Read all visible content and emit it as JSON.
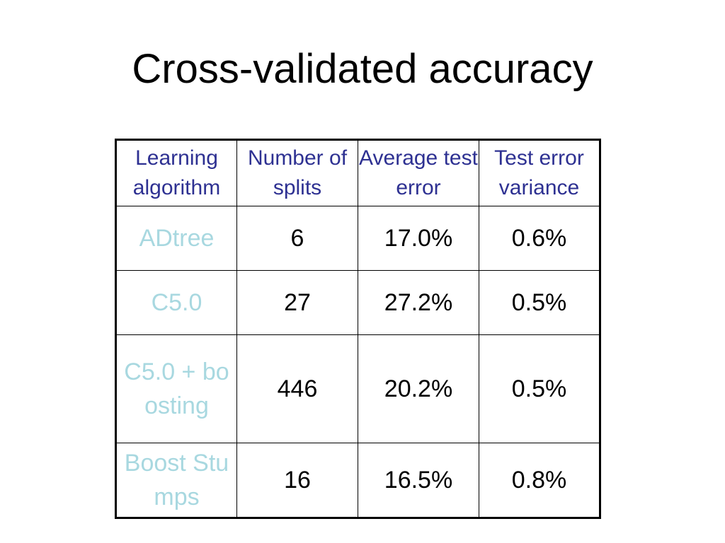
{
  "slide": {
    "title": "Cross-validated accuracy"
  },
  "table": {
    "headers": {
      "col0": "Learning algorithm",
      "col1": "Number of splits",
      "col2": "Average test error",
      "col3": "Test error variance"
    },
    "rows": [
      {
        "algorithm": "ADtree",
        "splits": "6",
        "avg_error": "17.0%",
        "variance": "0.6%"
      },
      {
        "algorithm": "C5.0",
        "splits": "27",
        "avg_error": "27.2%",
        "variance": "0.5%"
      },
      {
        "algorithm": "C5.0 + boosting",
        "splits": "446",
        "avg_error": "20.2%",
        "variance": "0.5%"
      },
      {
        "algorithm": "Boost Stumps",
        "splits": "16",
        "avg_error": "16.5%",
        "variance": "0.8%"
      }
    ],
    "colors": {
      "header_text": "#2e3192",
      "algorithm_text": "#a8d8e0",
      "value_text": "#000000",
      "border": "#000000"
    }
  }
}
